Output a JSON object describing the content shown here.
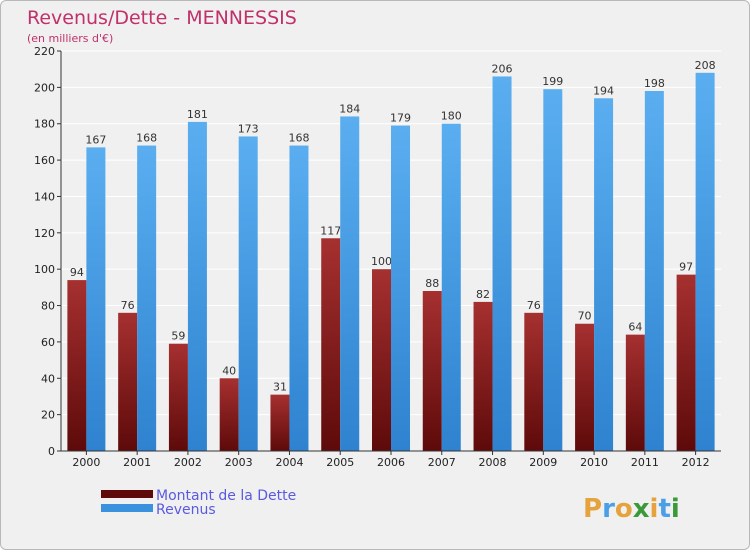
{
  "chart_data": {
    "type": "bar",
    "title": "Revenus/Dette - MENNESSIS",
    "subtitle": "(en milliers d'€)",
    "xlabel": "",
    "ylabel": "",
    "ylim": [
      0,
      220
    ],
    "yticks": [
      0,
      20,
      40,
      60,
      80,
      100,
      120,
      140,
      160,
      180,
      200,
      220
    ],
    "grid": true,
    "legend_position": "bottom-left",
    "categories": [
      "2000",
      "2001",
      "2002",
      "2003",
      "2004",
      "2005",
      "2006",
      "2007",
      "2008",
      "2009",
      "2010",
      "2011",
      "2012"
    ],
    "series": [
      {
        "name": "Montant de la Dette",
        "color": "#8b1a1a",
        "values": [
          94,
          76,
          59,
          40,
          31,
          117,
          100,
          88,
          82,
          76,
          70,
          64,
          97
        ]
      },
      {
        "name": "Revenus",
        "color": "#4a9fe6",
        "values": [
          167,
          168,
          181,
          173,
          168,
          184,
          179,
          180,
          206,
          199,
          194,
          198,
          208
        ]
      }
    ]
  },
  "logo": {
    "letters": [
      "P",
      "r",
      "o",
      "x",
      "i",
      "t",
      "i"
    ],
    "colors": [
      "#e6a23c",
      "#4a9fe6",
      "#e6a23c",
      "#3a9a3a",
      "#e6a23c",
      "#4a9fe6",
      "#3a9a3a"
    ]
  }
}
